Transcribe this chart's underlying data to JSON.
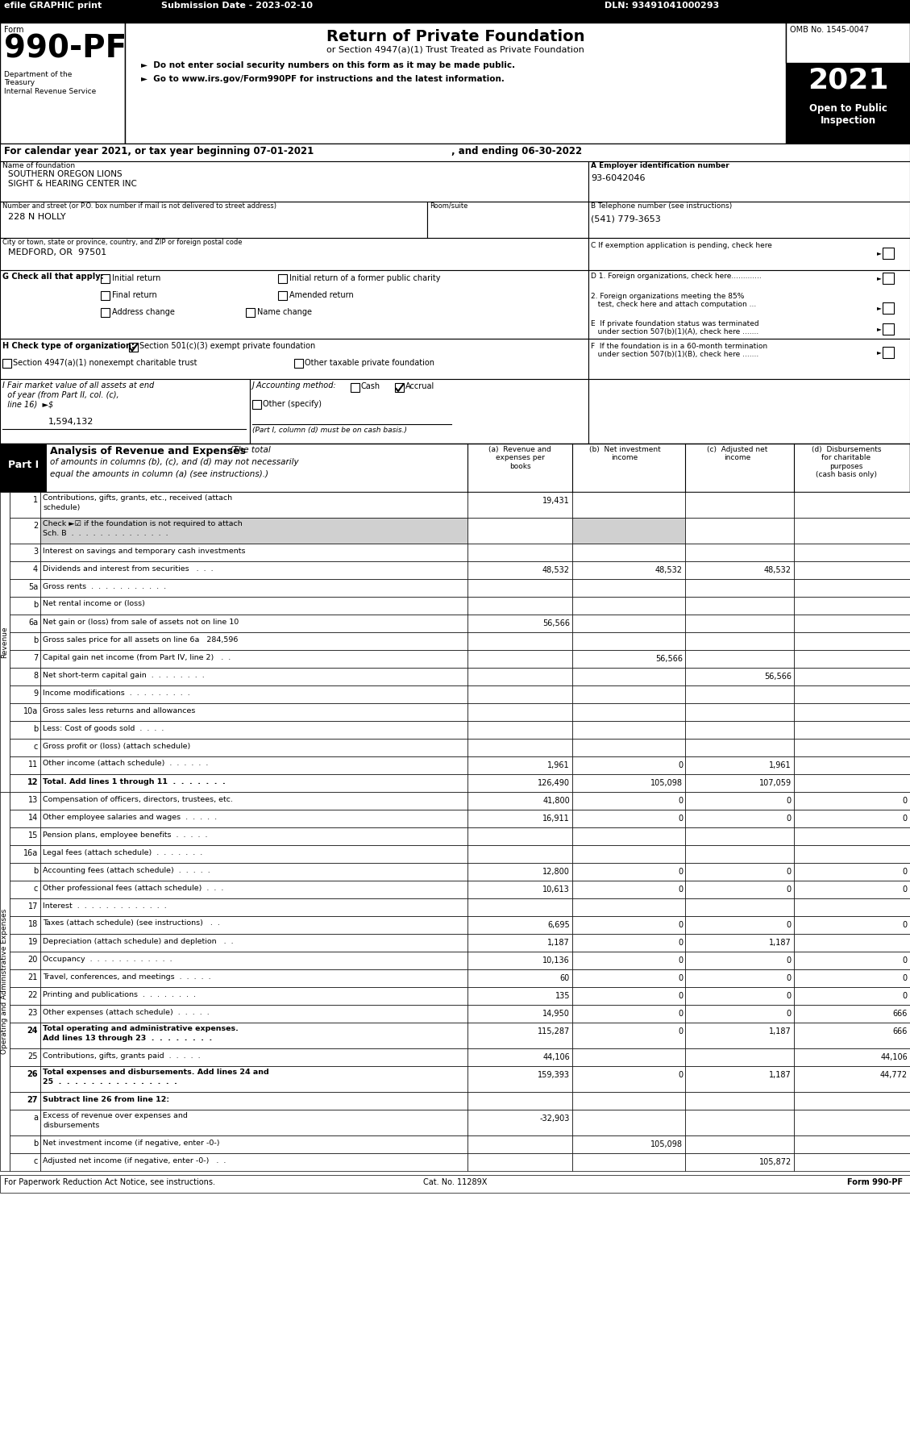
{
  "header_bar": {
    "efile_text": "efile GRAPHIC print",
    "submission_text": "Submission Date - 2023-02-10",
    "dln_text": "DLN: 93491041000293",
    "bg_color": "#000000",
    "text_color": "#ffffff"
  },
  "form_number": "990-PF",
  "form_label": "Form",
  "form_subtitle": "Return of Private Foundation",
  "form_subtitle2": "or Section 4947(a)(1) Trust Treated as Private Foundation",
  "bullet1": "►  Do not enter social security numbers on this form as it may be made public.",
  "bullet2": "►  Go to www.irs.gov/Form990PF for instructions and the latest information.",
  "dept_text": "Department of the\nTreasury\nInternal Revenue Service",
  "omb_text": "OMB No. 1545-0047",
  "year_text": "2021",
  "open_text": "Open to Public\nInspection",
  "cal_year_text": "For calendar year 2021, or tax year beginning 07-01-2021",
  "ending_text": ", and ending 06-30-2022",
  "foundation_name_label": "Name of foundation",
  "foundation_name": "SOUTHERN OREGON LIONS\nSIGHT & HEARING CENTER INC",
  "ein_label": "A Employer identification number",
  "ein_value": "93-6042046",
  "address_label": "Number and street (or P.O. box number if mail is not delivered to street address)",
  "room_label": "Room/suite",
  "address_value": "228 N HOLLY",
  "phone_label": "B Telephone number (see instructions)",
  "phone_value": "(541) 779-3653",
  "city_label": "City or town, state or province, country, and ZIP or foreign postal code",
  "city_value": "MEDFORD, OR  97501",
  "exemption_label": "C If exemption application is pending, check here",
  "g_label": "G Check all that apply:",
  "initial_return": "Initial return",
  "initial_former": "Initial return of a former public charity",
  "final_return": "Final return",
  "amended_return": "Amended return",
  "address_change": "Address change",
  "name_change": "Name change",
  "d1_label": "D 1. Foreign organizations, check here.............",
  "d2_label": "2. Foreign organizations meeting the 85%\n    test, check here and attach computation ...",
  "e_label": "E  If private foundation status was terminated\n    under section 507(b)(1)(A), check here .......",
  "h_label": "H Check type of organization:",
  "h_501c3": "Section 501(c)(3) exempt private foundation",
  "h_4947": "Section 4947(a)(1) nonexempt charitable trust",
  "h_other": "Other taxable private foundation",
  "i_label": "I Fair market value of all assets at end\n  of year (from Part II, col. (c),\n  line 16)  ►$",
  "i_value": "1,594,132",
  "j_label": "J Accounting method:",
  "j_cash": "Cash",
  "j_accrual": "Accrual",
  "j_other": "Other (specify)",
  "j_note": "(Part I, column (d) must be on cash basis.)",
  "f_label": "F  If the foundation is in a 60-month termination\n    under section 507(b)(1)(B), check here .......",
  "part1_label": "Part I",
  "part1_title": "Analysis of Revenue and Expenses",
  "part1_note": "(The total\nof amounts in columns (b), (c), and (d) may not necessarily\nequal the amounts in column (a) (see instructions).)",
  "col_a": "(a)  Revenue and\nexpeneses per\nbooks",
  "col_b": "(b)  Net investment\nincome",
  "col_c": "(c)  Adjusted net\nincome",
  "col_d": "(d)  Disbursements\nfor charitable\npurposes\n(cash basis only)",
  "revenue_label": "Revenue",
  "expenses_label": "Operating and Administrative Expenses",
  "rows": [
    {
      "num": "1",
      "label": "Contributions, gifts, grants, etc., received (attach\nschedule)",
      "a": "19,431",
      "b": "",
      "c": "",
      "d": "",
      "shaded": false
    },
    {
      "num": "2",
      "label": "Check ►☑ if the foundation is not required to attach\nSch. B  .  .  .  .  .  .  .  .  .  .  .  .  .  .",
      "a": "",
      "b": "",
      "c": "",
      "d": "",
      "shaded": true
    },
    {
      "num": "3",
      "label": "Interest on savings and temporary cash investments",
      "a": "",
      "b": "",
      "c": "",
      "d": "",
      "shaded": false
    },
    {
      "num": "4",
      "label": "Dividends and interest from securities   .  .  .",
      "a": "48,532",
      "b": "48,532",
      "c": "48,532",
      "d": "",
      "shaded": false
    },
    {
      "num": "5a",
      "label": "Gross rents  .  .  .  .  .  .  .  .  .  .  .",
      "a": "",
      "b": "",
      "c": "",
      "d": "",
      "shaded": false
    },
    {
      "num": "b",
      "label": "Net rental income or (loss)",
      "a": "",
      "b": "",
      "c": "",
      "d": "",
      "shaded": false
    },
    {
      "num": "6a",
      "label": "Net gain or (loss) from sale of assets not on line 10",
      "a": "56,566",
      "b": "",
      "c": "",
      "d": "",
      "shaded": false
    },
    {
      "num": "b",
      "label": "Gross sales price for all assets on line 6a   284,596",
      "a": "",
      "b": "",
      "c": "",
      "d": "",
      "shaded": false
    },
    {
      "num": "7",
      "label": "Capital gain net income (from Part IV, line 2)   .  .",
      "a": "",
      "b": "56,566",
      "c": "",
      "d": "",
      "shaded": false
    },
    {
      "num": "8",
      "label": "Net short-term capital gain  .  .  .  .  .  .  .  .",
      "a": "",
      "b": "",
      "c": "56,566",
      "d": "",
      "shaded": false
    },
    {
      "num": "9",
      "label": "Income modifications  .  .  .  .  .  .  .  .  .",
      "a": "",
      "b": "",
      "c": "",
      "d": "",
      "shaded": false
    },
    {
      "num": "10a",
      "label": "Gross sales less returns and allowances",
      "a": "",
      "b": "",
      "c": "",
      "d": "",
      "shaded": false
    },
    {
      "num": "b",
      "label": "Less: Cost of goods sold  .  .  .  .",
      "a": "",
      "b": "",
      "c": "",
      "d": "",
      "shaded": false
    },
    {
      "num": "c",
      "label": "Gross profit or (loss) (attach schedule)",
      "a": "",
      "b": "",
      "c": "",
      "d": "",
      "shaded": false
    },
    {
      "num": "11",
      "label": "Other income (attach schedule)  .  .  .  .  .  .",
      "a": "1,961",
      "b": "0",
      "c": "1,961",
      "d": "",
      "shaded": false
    },
    {
      "num": "12",
      "label": "Total. Add lines 1 through 11  .  .  .  .  .  .  .",
      "a": "126,490",
      "b": "105,098",
      "c": "107,059",
      "d": "",
      "shaded": false
    },
    {
      "num": "13",
      "label": "Compensation of officers, directors, trustees, etc.",
      "a": "41,800",
      "b": "0",
      "c": "0",
      "d": "0",
      "shaded": false
    },
    {
      "num": "14",
      "label": "Other employee salaries and wages  .  .  .  .  .",
      "a": "16,911",
      "b": "0",
      "c": "0",
      "d": "0",
      "shaded": false
    },
    {
      "num": "15",
      "label": "Pension plans, employee benefits  .  .  .  .  .",
      "a": "",
      "b": "",
      "c": "",
      "d": "",
      "shaded": false
    },
    {
      "num": "16a",
      "label": "Legal fees (attach schedule)  .  .  .  .  .  .  .",
      "a": "",
      "b": "",
      "c": "",
      "d": "",
      "shaded": false
    },
    {
      "num": "b",
      "label": "Accounting fees (attach schedule)  .  .  .  .  .",
      "a": "12,800",
      "b": "0",
      "c": "0",
      "d": "0",
      "shaded": false
    },
    {
      "num": "c",
      "label": "Other professional fees (attach schedule)  .  .  .",
      "a": "10,613",
      "b": "0",
      "c": "0",
      "d": "0",
      "shaded": false
    },
    {
      "num": "17",
      "label": "Interest  .  .  .  .  .  .  .  .  .  .  .  .  .",
      "a": "",
      "b": "",
      "c": "",
      "d": "",
      "shaded": false
    },
    {
      "num": "18",
      "label": "Taxes (attach schedule) (see instructions)   .  .",
      "a": "6,695",
      "b": "0",
      "c": "0",
      "d": "0",
      "shaded": false
    },
    {
      "num": "19",
      "label": "Depreciation (attach schedule) and depletion   .  .",
      "a": "1,187",
      "b": "0",
      "c": "1,187",
      "d": "",
      "shaded": false
    },
    {
      "num": "20",
      "label": "Occupancy  .  .  .  .  .  .  .  .  .  .  .  .",
      "a": "10,136",
      "b": "0",
      "c": "0",
      "d": "0",
      "shaded": false
    },
    {
      "num": "21",
      "label": "Travel, conferences, and meetings  .  .  .  .  .",
      "a": "60",
      "b": "0",
      "c": "0",
      "d": "0",
      "shaded": false
    },
    {
      "num": "22",
      "label": "Printing and publications  .  .  .  .  .  .  .  .",
      "a": "135",
      "b": "0",
      "c": "0",
      "d": "0",
      "shaded": false
    },
    {
      "num": "23",
      "label": "Other expenses (attach schedule)  .  .  .  .  .",
      "a": "14,950",
      "b": "0",
      "c": "0",
      "d": "666",
      "shaded": false
    },
    {
      "num": "24",
      "label": "Total operating and administrative expenses.\nAdd lines 13 through 23  .  .  .  .  .  .  .  .",
      "a": "115,287",
      "b": "0",
      "c": "1,187",
      "d": "666",
      "shaded": false
    },
    {
      "num": "25",
      "label": "Contributions, gifts, grants paid  .  .  .  .  .",
      "a": "44,106",
      "b": "",
      "c": "",
      "d": "44,106",
      "shaded": false
    },
    {
      "num": "26",
      "label": "Total expenses and disbursements. Add lines 24 and\n25  .  .  .  .  .  .  .  .  .  .  .  .  .  .  .",
      "a": "159,393",
      "b": "0",
      "c": "1,187",
      "d": "44,772",
      "shaded": false
    },
    {
      "num": "27",
      "label": "Subtract line 26 from line 12:",
      "a": "",
      "b": "",
      "c": "",
      "d": "",
      "shaded": false
    },
    {
      "num": "a",
      "label": "Excess of revenue over expenses and\ndisbursements",
      "a": "-32,903",
      "b": "",
      "c": "",
      "d": "",
      "shaded": false
    },
    {
      "num": "b",
      "label": "Net investment income (if negative, enter -0-)",
      "a": "",
      "b": "105,098",
      "c": "",
      "d": "",
      "shaded": false
    },
    {
      "num": "c",
      "label": "Adjusted net income (if negative, enter -0-)   .  .",
      "a": "",
      "b": "",
      "c": "105,872",
      "d": "",
      "shaded": false
    }
  ],
  "footer_left": "For Paperwork Reduction Act Notice, see instructions.",
  "footer_cat": "Cat. No. 11289X",
  "footer_right": "Form 990-PF"
}
